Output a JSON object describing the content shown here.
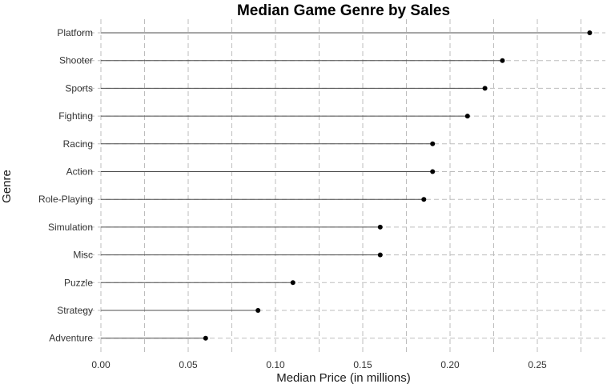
{
  "chart_data": {
    "type": "lollipop",
    "title": "Median Game Genre by Sales",
    "xlabel": "Median Price (in millions)",
    "ylabel": "Genre",
    "xlim": [
      0,
      0.28
    ],
    "x_ticks": [
      "0.00",
      "0.05",
      "0.10",
      "0.15",
      "0.20",
      "0.25"
    ],
    "grid": true,
    "categories": [
      "Platform",
      "Shooter",
      "Sports",
      "Fighting",
      "Racing",
      "Action",
      "Role-Playing",
      "Simulation",
      "Misc",
      "Puzzle",
      "Strategy",
      "Adventure"
    ],
    "values": [
      0.28,
      0.23,
      0.22,
      0.21,
      0.19,
      0.19,
      0.185,
      0.16,
      0.16,
      0.11,
      0.09,
      0.06
    ]
  }
}
